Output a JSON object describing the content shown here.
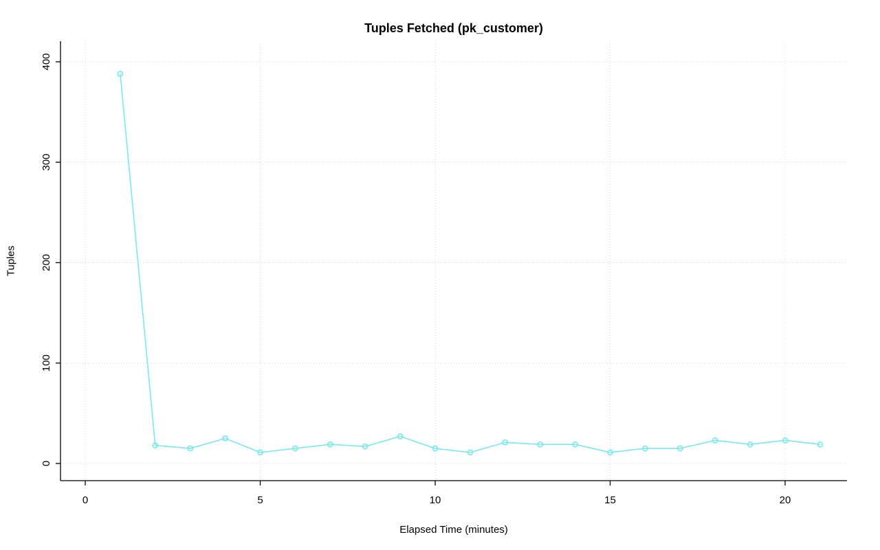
{
  "chart_data": {
    "type": "line",
    "title": "Tuples Fetched (pk_customer)",
    "xlabel": "Elapsed Time (minutes)",
    "ylabel": "Tuples",
    "x": [
      1,
      2,
      3,
      4,
      5,
      6,
      7,
      8,
      9,
      10,
      11,
      12,
      13,
      14,
      15,
      16,
      17,
      18,
      19,
      20,
      21
    ],
    "values": [
      388,
      18,
      15,
      25,
      11,
      15,
      19,
      17,
      27,
      15,
      11,
      21,
      19,
      19,
      11,
      15,
      15,
      23,
      19,
      23,
      19
    ],
    "x_ticks": [
      0,
      5,
      10,
      15,
      20
    ],
    "y_ticks": [
      0,
      100,
      200,
      300,
      400
    ],
    "xlim": [
      0,
      21.8
    ],
    "ylim": [
      0,
      400
    ],
    "grid": true,
    "legend": "none",
    "marker": "open-circle",
    "line_color": "#76EAEF",
    "grid_color": "#D6D6D6",
    "axis_color": "#000000",
    "background_color": "#FFFFFF"
  }
}
